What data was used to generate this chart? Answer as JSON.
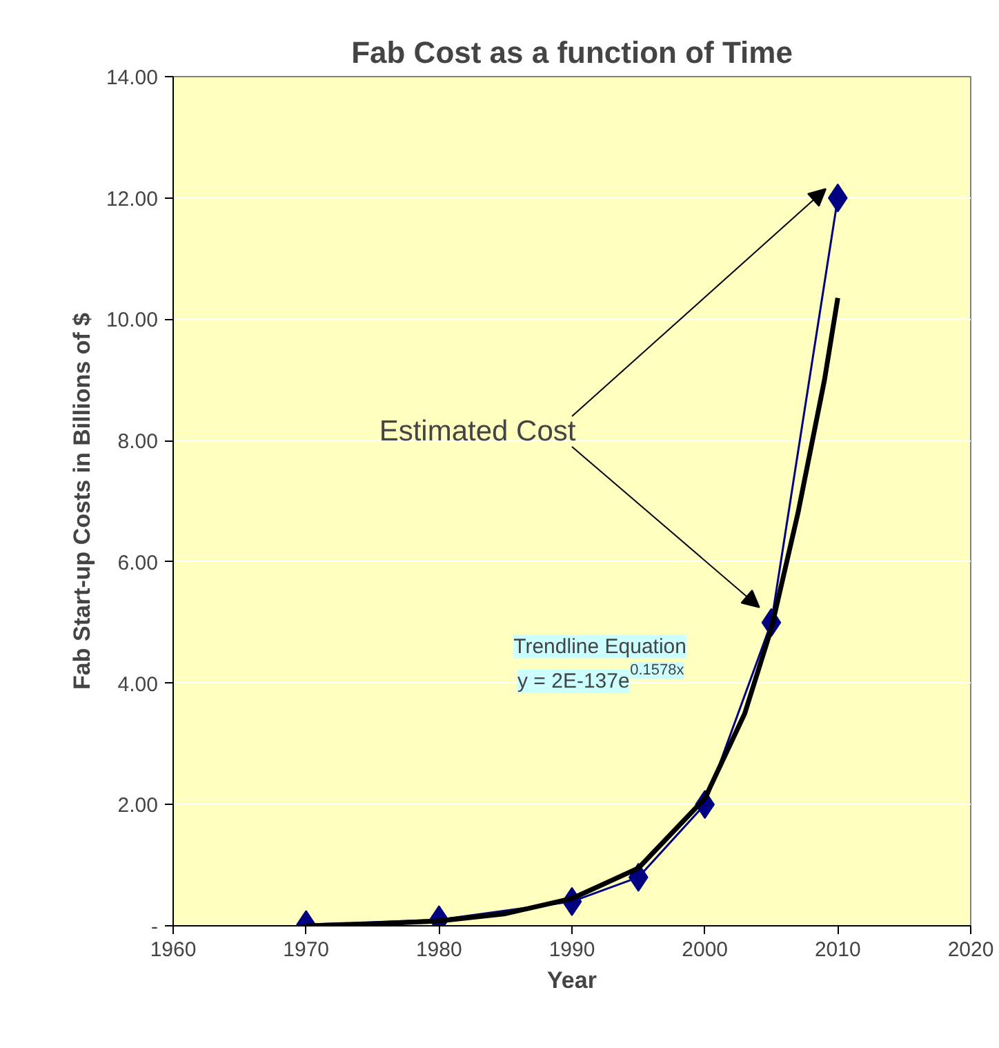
{
  "chart_data": {
    "type": "line",
    "title": "Fab Cost as a function of Time",
    "xlabel": "Year",
    "ylabel": "Fab Start-up Costs in Billions of $",
    "series": [
      {
        "color": "#000080",
        "marker": "diamond",
        "x": [
          1970,
          1980,
          1990,
          1995,
          2000,
          2005,
          2010
        ],
        "values": [
          0.02,
          0.1,
          0.4,
          0.8,
          2.0,
          5.0,
          12.0
        ]
      },
      {
        "color": "#000000",
        "marker": "none",
        "x": [
          1970,
          1975,
          1980,
          1985,
          1990,
          1995,
          2000,
          2003,
          2005,
          2007,
          2009,
          2010
        ],
        "values": [
          0.0,
          0.03,
          0.08,
          0.2,
          0.45,
          0.95,
          2.1,
          3.5,
          4.9,
          6.8,
          9.0,
          10.35
        ]
      }
    ],
    "xlim": [
      1960,
      2020
    ],
    "xticks": [
      1960,
      1970,
      1980,
      1990,
      2000,
      2010,
      2020
    ],
    "ylim": [
      0,
      14
    ],
    "yticks": [
      {
        "value": 0,
        "label": "-"
      },
      {
        "value": 2,
        "label": "2.00"
      },
      {
        "value": 4,
        "label": "4.00"
      },
      {
        "value": 6,
        "label": "6.00"
      },
      {
        "value": 8,
        "label": "8.00"
      },
      {
        "value": 10,
        "label": "10.00"
      },
      {
        "value": 12,
        "label": "12.00"
      },
      {
        "value": 14,
        "label": "14.00"
      }
    ],
    "grid": "y",
    "annotations": [
      "Estimated Cost",
      "Trendline Equation",
      "y = 2E-137e$^{0.1578x}$"
    ]
  }
}
